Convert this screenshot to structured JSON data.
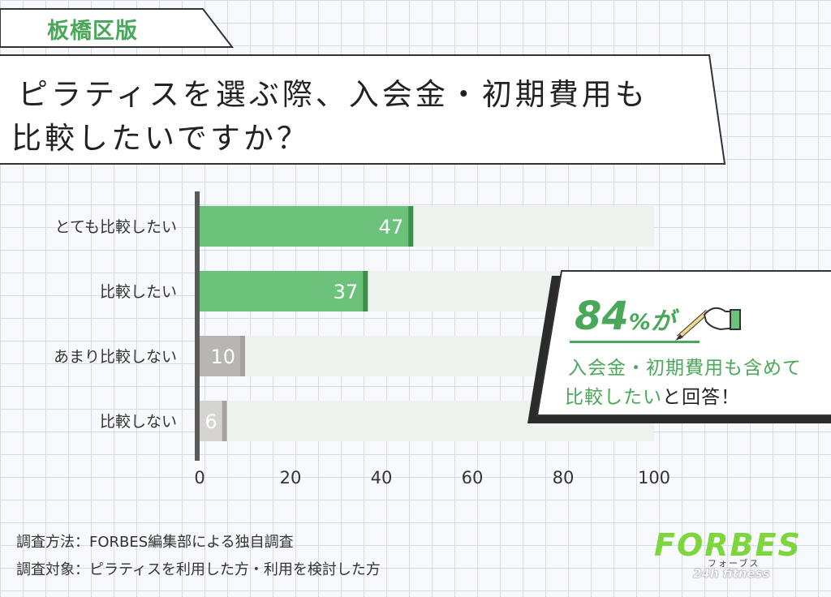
{
  "region_tag": "板橋区版",
  "title": {
    "line1": "ピラティスを選ぶ際、入会金・初期費用も",
    "line2": "比較したいですか？"
  },
  "chart_data": {
    "type": "bar",
    "orientation": "horizontal",
    "stacked": false,
    "categories": [
      "とても比較したい",
      "比較したい",
      "あまり比較しない",
      "比較しない"
    ],
    "values": [
      47,
      37,
      10,
      6
    ],
    "xlim": [
      0,
      100
    ],
    "xticks": [
      0,
      20,
      40,
      60,
      80,
      100
    ],
    "xlabel": "",
    "ylabel": "",
    "colors": [
      "#6cc27a",
      "#6cc27a",
      "#b9b5b5",
      "#d6d3d3"
    ],
    "background_track_color": "#eef2ee",
    "grid": false,
    "legend": "none"
  },
  "callout": {
    "number": "84",
    "percent": "%",
    "particle": "が",
    "line1": "入会金・初期費用も含めて",
    "line2_highlight": "比較したい",
    "line2_rest": "と回答！",
    "accent_color": "#4aa85a"
  },
  "footnotes": {
    "method": "調査方法：FORBES編集部による独自調査",
    "target": "調査対象：ピラティスを利用した方・利用を検討した方"
  },
  "logo": {
    "brand": "FORBES",
    "kana": "フォーブス",
    "sub": "24h fitness"
  }
}
